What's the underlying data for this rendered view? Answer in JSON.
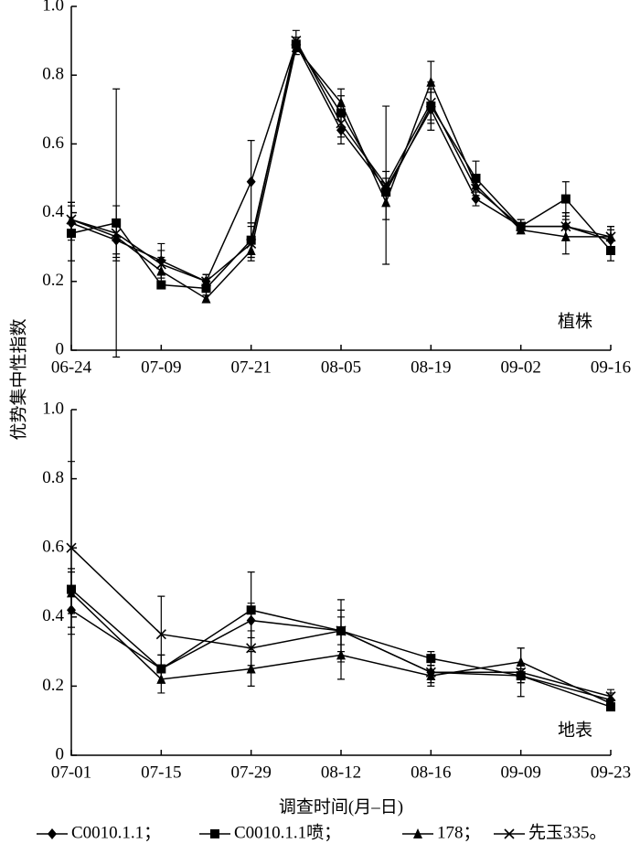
{
  "chart_data": [
    {
      "type": "line",
      "ylabel": "优势集中性指数",
      "annotation": "植株",
      "categories": [
        "06-24",
        null,
        "07-09",
        null,
        "07-21",
        null,
        "08-05",
        null,
        "08-19",
        null,
        "09-02",
        null,
        "09-16"
      ],
      "ylim": [
        0,
        1
      ],
      "yticks": [
        0,
        0.2,
        0.4,
        0.6,
        0.8,
        {
          "value": 1,
          "label": "1.0"
        }
      ],
      "series": [
        {
          "marker": "diamond",
          "color": "#000000",
          "values": [
            0.37,
            0.32,
            0.26,
            0.2,
            0.49,
            0.89,
            0.64,
            0.47,
            0.7,
            0.44,
            0.36,
            0.36,
            0.32
          ],
          "errors": [
            0.05,
            0.05,
            0.05,
            0.02,
            0.12,
            0.02,
            0.04,
            0.05,
            0.06,
            0.02,
            0.02,
            0.04,
            0.03
          ]
        },
        {
          "marker": "square",
          "color": "#000000",
          "values": [
            0.34,
            0.37,
            0.19,
            0.18,
            0.32,
            0.89,
            0.69,
            0.46,
            0.71,
            0.5,
            0.36,
            0.44,
            0.29
          ],
          "errors": [
            0.08,
            0.39,
            0.01,
            0.02,
            0.05,
            0.02,
            0.05,
            0.04,
            0.04,
            0.05,
            0.01,
            0.05,
            0.03
          ]
        },
        {
          "marker": "triangle",
          "color": "#000000",
          "values": [
            0.38,
            0.33,
            0.23,
            0.15,
            0.29,
            0.88,
            0.72,
            0.43,
            0.78,
            0.48,
            0.35,
            0.33,
            0.33
          ],
          "errors": [
            0.05,
            0.05,
            0.04,
            0.01,
            0.02,
            0.02,
            0.04,
            0.05,
            0.06,
            0.03,
            0.01,
            0.05,
            0.03
          ]
        },
        {
          "marker": "x",
          "color": "#000000",
          "values": [
            0.38,
            0.34,
            0.25,
            0.2,
            0.31,
            0.9,
            0.66,
            0.48,
            0.72,
            0.47,
            0.36,
            0.36,
            0.33
          ],
          "errors": [
            0.05,
            0.08,
            0.04,
            0.02,
            0.05,
            0.03,
            0.04,
            0.23,
            0.06,
            0.03,
            0.02,
            0.04,
            0.03
          ]
        }
      ]
    },
    {
      "type": "line",
      "xlabel": "调查时间(月–日)",
      "annotation": "地表",
      "categories": [
        "07-01",
        "07-15",
        "07-29",
        "08-12",
        "08-16",
        "09-09",
        "09-23"
      ],
      "ylim": [
        0,
        1
      ],
      "yticks": [
        0,
        0.2,
        0.4,
        0.6,
        0.8,
        {
          "value": 1,
          "label": "1.0"
        }
      ],
      "series": [
        {
          "name": "C0010.1.1；",
          "marker": "diamond",
          "color": "#000000",
          "values": [
            0.42,
            0.25,
            0.39,
            0.36,
            0.24,
            0.23,
            0.16
          ],
          "errors": [
            0.05,
            0.04,
            0.05,
            0.04,
            0.02,
            0.02,
            0.02
          ]
        },
        {
          "name": "C0010.1.1喷；",
          "marker": "square",
          "color": "#000000",
          "values": [
            0.48,
            0.25,
            0.42,
            0.36,
            0.28,
            0.23,
            0.14
          ],
          "errors": [
            0.06,
            0.04,
            0.11,
            0.09,
            0.02,
            0.02,
            0.01
          ]
        },
        {
          "name": "178；",
          "marker": "triangle",
          "color": "#000000",
          "values": [
            0.47,
            0.22,
            0.25,
            0.29,
            0.23,
            0.27,
            0.15
          ],
          "errors": [
            0.06,
            0.04,
            0.05,
            0.07,
            0.03,
            0.04,
            0.01
          ]
        },
        {
          "name": "先玉335。",
          "marker": "x",
          "color": "#000000",
          "values": [
            0.6,
            0.35,
            0.31,
            0.36,
            0.24,
            0.24,
            0.17
          ],
          "errors": [
            0.25,
            0.11,
            0.05,
            0.06,
            0.03,
            0.07,
            0.02
          ]
        }
      ]
    }
  ]
}
